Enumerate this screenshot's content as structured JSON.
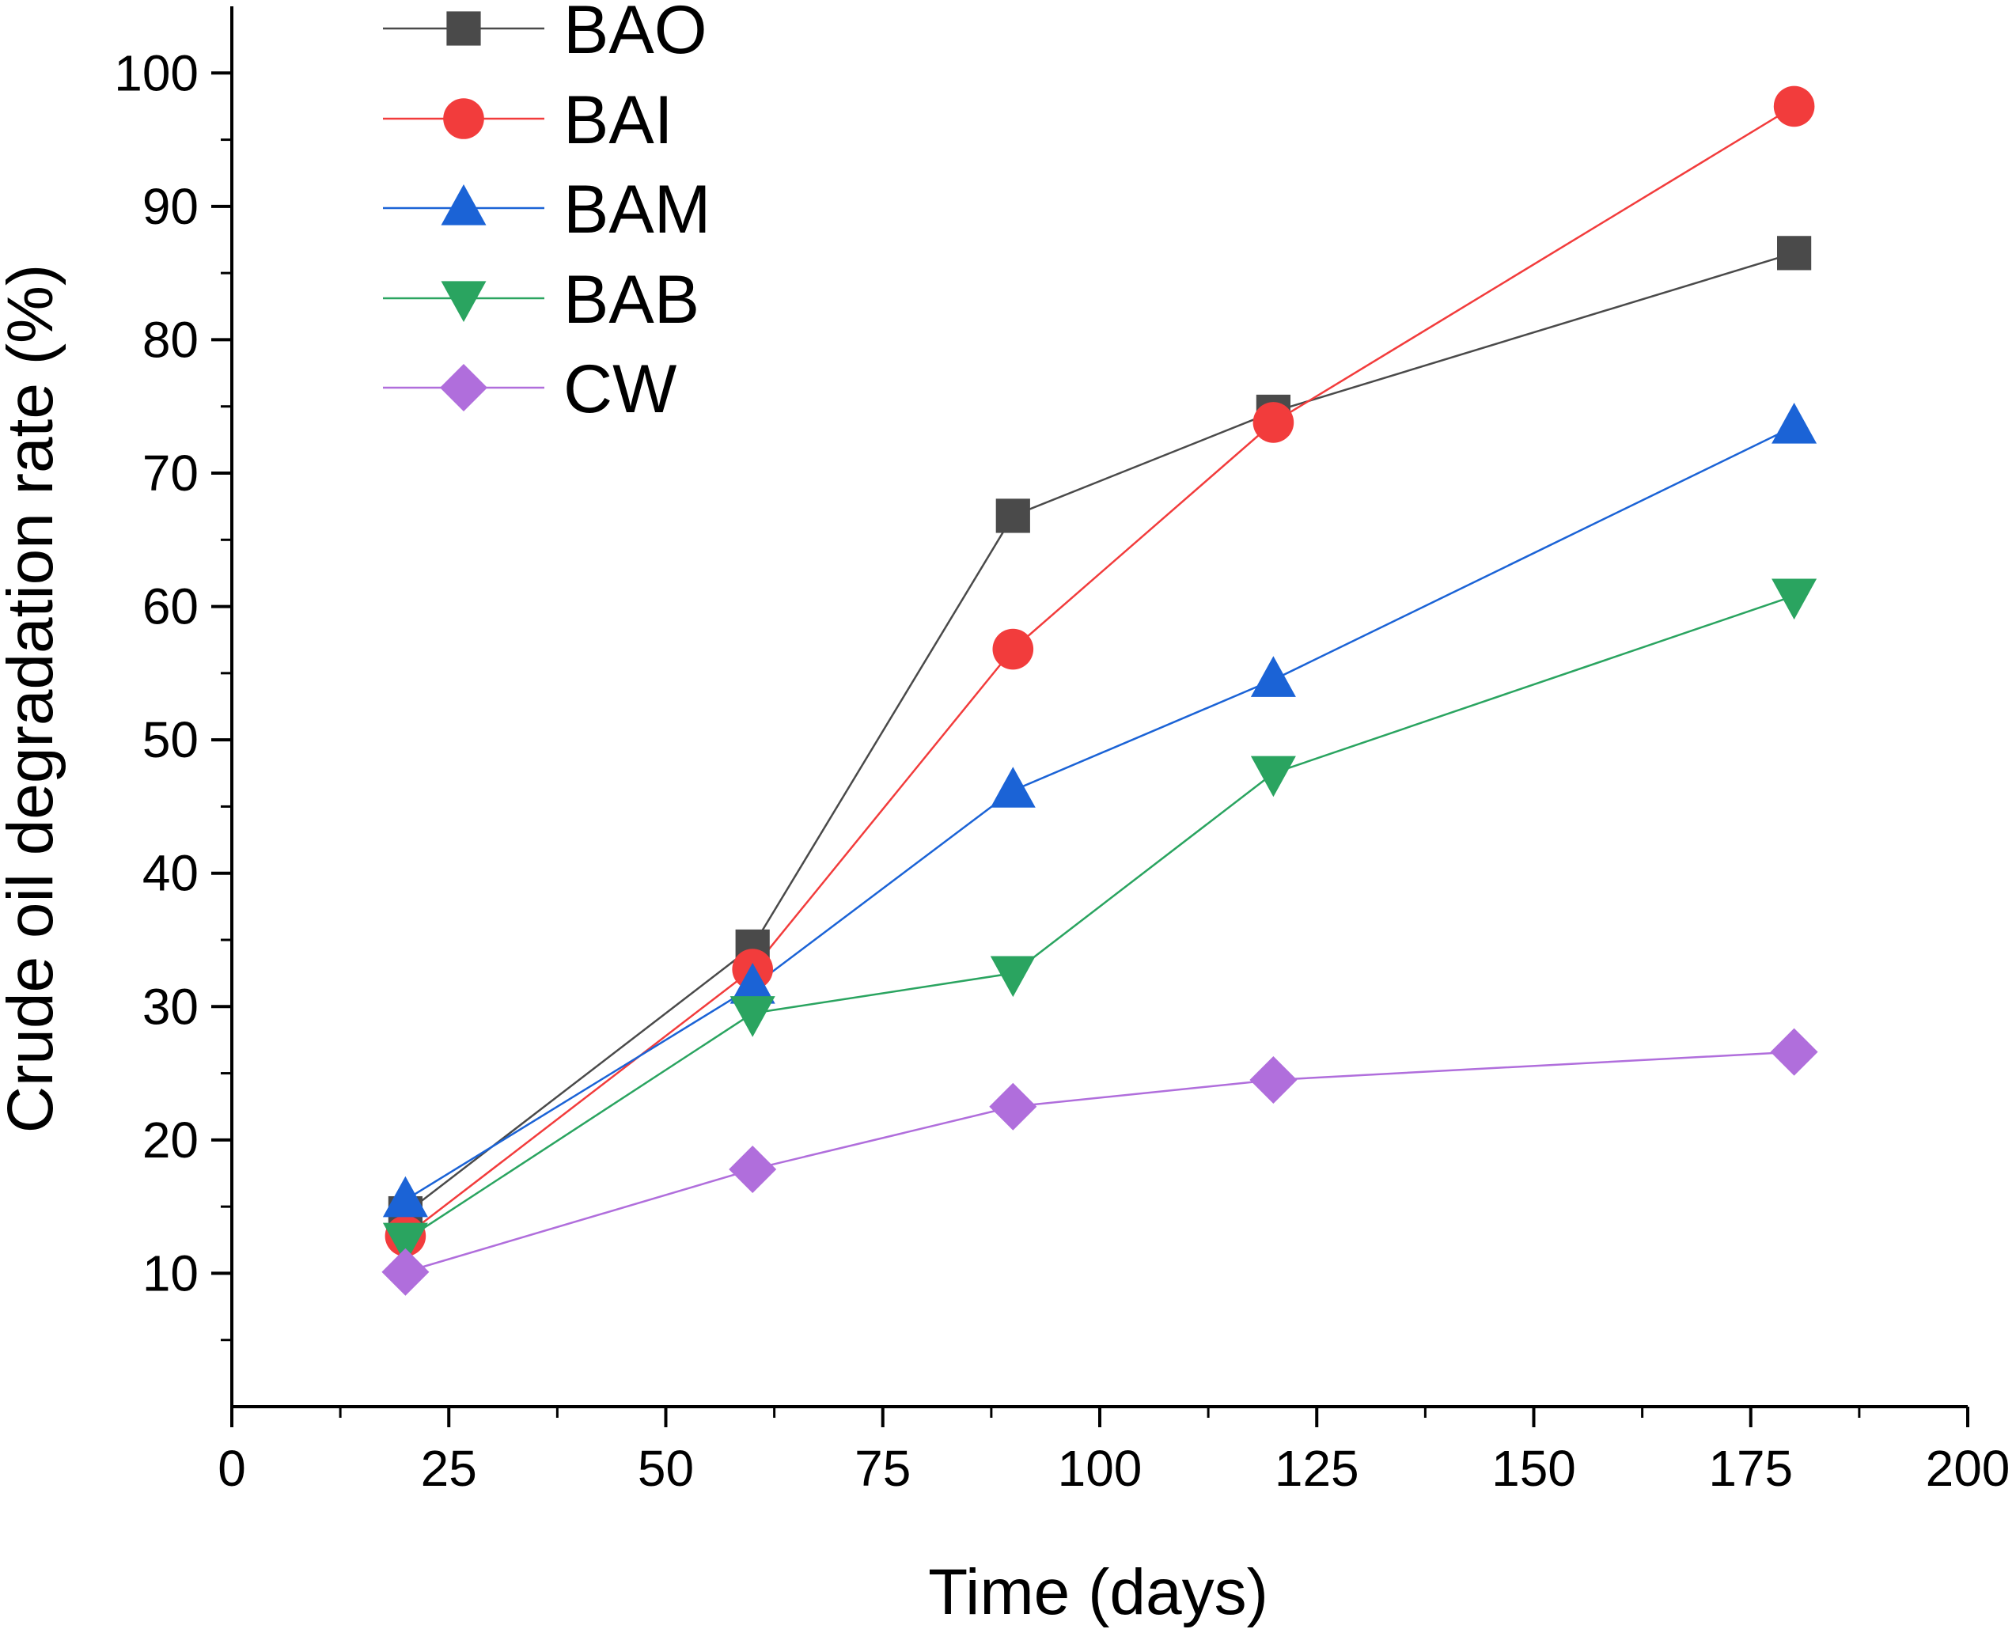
{
  "chart_data": {
    "type": "line",
    "title": "",
    "xlabel": "Time (days)",
    "ylabel": "Crude oil degradation rate (%)",
    "xlim": [
      0,
      200
    ],
    "ylim": [
      0,
      105
    ],
    "x_ticks": [
      0,
      25,
      50,
      75,
      100,
      125,
      150,
      175,
      200
    ],
    "x_tick_labels": [
      "0",
      "25",
      "50",
      "75",
      "100",
      "125",
      "150",
      "175",
      "200"
    ],
    "y_ticks": [
      10,
      20,
      30,
      40,
      50,
      60,
      70,
      80,
      90,
      100
    ],
    "y_tick_labels": [
      "10",
      "20",
      "30",
      "40",
      "50",
      "60",
      "70",
      "80",
      "90",
      "100"
    ],
    "grid": false,
    "legend_position": "top-left",
    "x": [
      20,
      60,
      90,
      120,
      180
    ],
    "series": [
      {
        "name": "BAO",
        "marker": "square",
        "color": "#4a4a4a",
        "values": [
          14.5,
          34.5,
          66.8,
          74.6,
          86.5
        ]
      },
      {
        "name": "BAI",
        "marker": "circle",
        "color": "#f23c3c",
        "values": [
          12.8,
          32.8,
          56.8,
          73.8,
          97.5
        ]
      },
      {
        "name": "BAM",
        "marker": "triangle-up",
        "color": "#1b63d6",
        "values": [
          15.5,
          31.5,
          46.2,
          54.5,
          73.5
        ]
      },
      {
        "name": "BAB",
        "marker": "triangle-down",
        "color": "#2aa460",
        "values": [
          12.5,
          29.5,
          32.5,
          47.5,
          60.8
        ]
      },
      {
        "name": "CW",
        "marker": "diamond",
        "color": "#b06edc",
        "values": [
          10.1,
          17.8,
          22.5,
          24.5,
          26.6
        ]
      }
    ]
  }
}
